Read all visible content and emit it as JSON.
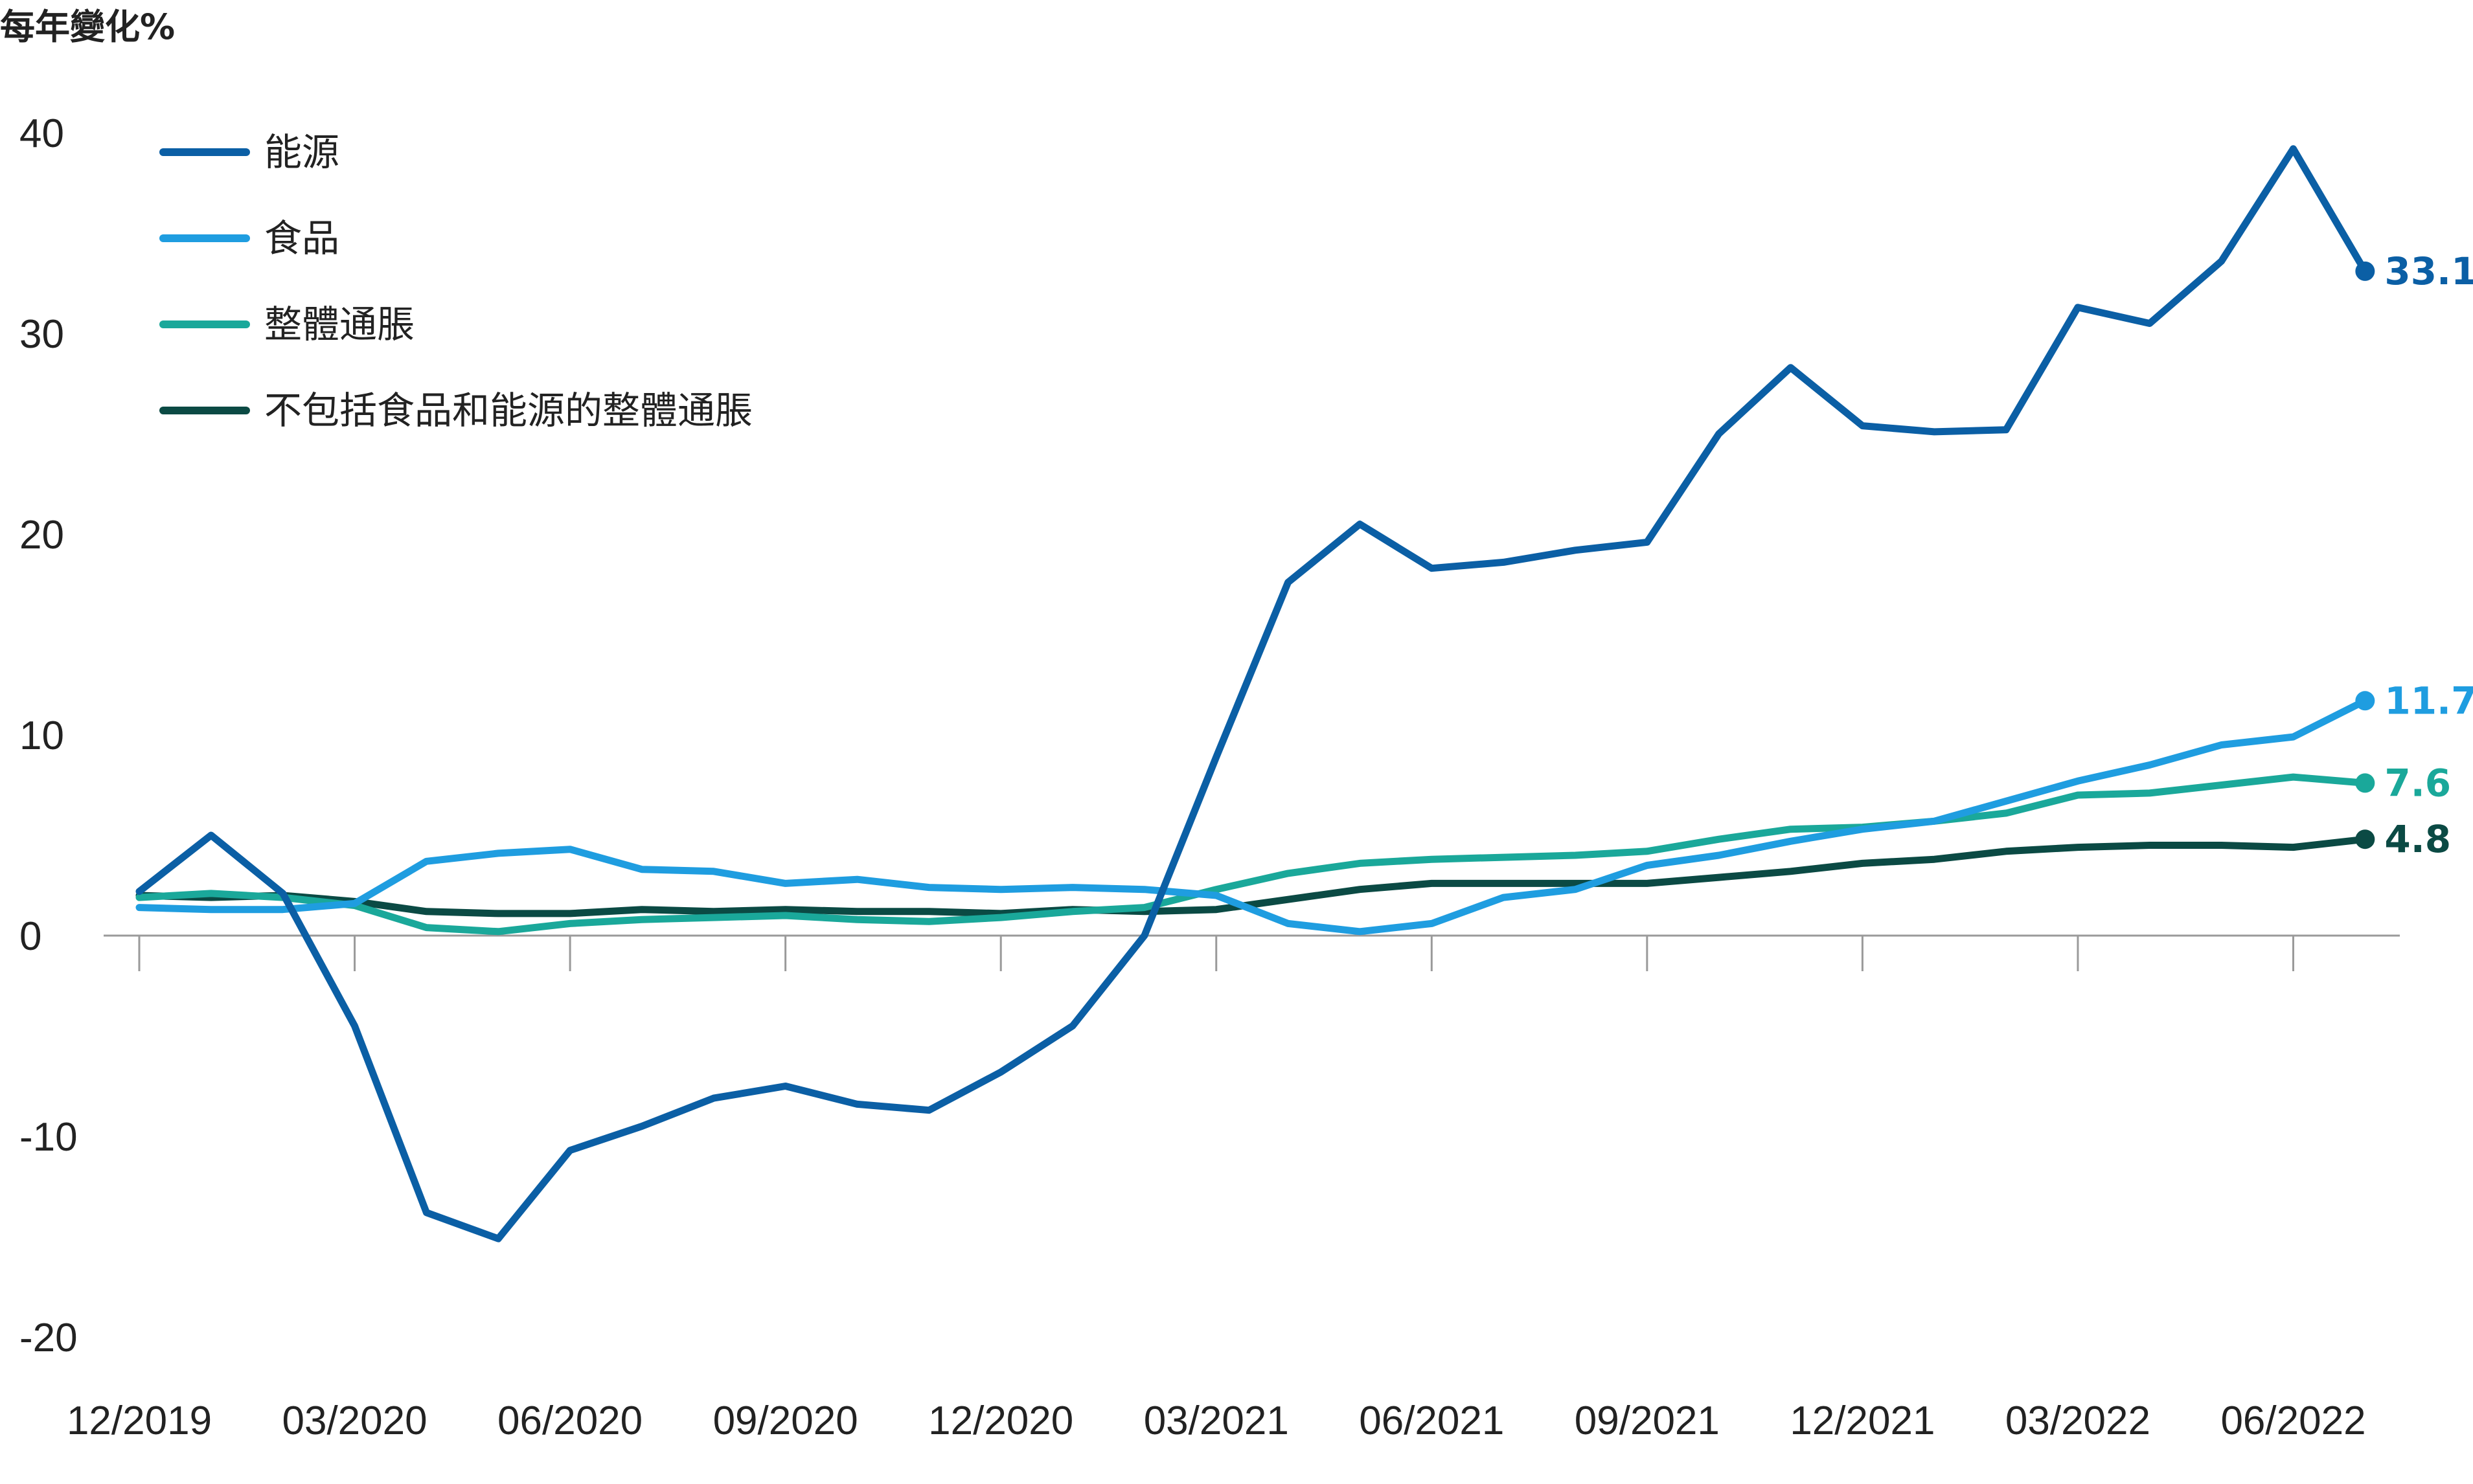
{
  "chart_data": {
    "type": "line",
    "title": "",
    "ylabel": "每年變化%",
    "xlabel": "",
    "ylim": [
      -20,
      40
    ],
    "yticks": [
      "40",
      "30",
      "20",
      "10",
      "0",
      "-10",
      "-20"
    ],
    "ytick_values": [
      40,
      30,
      20,
      10,
      0,
      -10,
      -20
    ],
    "grid": false,
    "legend_position": "top-left",
    "x": [
      "12/2019",
      "01/2020",
      "02/2020",
      "03/2020",
      "04/2020",
      "05/2020",
      "06/2020",
      "07/2020",
      "08/2020",
      "09/2020",
      "10/2020",
      "11/2020",
      "12/2020",
      "01/2021",
      "02/2021",
      "03/2021",
      "04/2021",
      "05/2021",
      "06/2021",
      "07/2021",
      "08/2021",
      "09/2021",
      "10/2021",
      "11/2021",
      "12/2021",
      "01/2022",
      "02/2022",
      "03/2022",
      "04/2022",
      "05/2022",
      "06/2022",
      "07/2022"
    ],
    "xticks": [
      "12/2019",
      "03/2020",
      "06/2020",
      "09/2020",
      "12/2020",
      "03/2021",
      "06/2021",
      "09/2021",
      "12/2021",
      "03/2022",
      "06/2022"
    ],
    "series": [
      {
        "name": "能源",
        "color": "#0b5fa5",
        "end_label": "33.1",
        "values": [
          2.2,
          5.0,
          2.1,
          -4.5,
          -13.8,
          -15.1,
          -10.7,
          -9.5,
          -8.1,
          -7.5,
          -8.4,
          -8.7,
          -6.8,
          -4.5,
          0.0,
          8.9,
          17.6,
          20.5,
          18.3,
          18.6,
          19.2,
          19.6,
          25.0,
          28.3,
          25.4,
          25.1,
          25.2,
          31.3,
          30.5,
          33.6,
          39.2,
          33.1
        ]
      },
      {
        "name": "食品",
        "color": "#1f9de0",
        "end_label": "11.7",
        "values": [
          1.4,
          1.3,
          1.3,
          1.6,
          3.7,
          4.1,
          4.3,
          3.3,
          3.2,
          2.6,
          2.8,
          2.4,
          2.3,
          2.4,
          2.3,
          2.0,
          0.6,
          0.2,
          0.6,
          1.9,
          2.3,
          3.5,
          4.0,
          4.7,
          5.3,
          5.7,
          6.7,
          7.7,
          8.5,
          9.5,
          9.9,
          11.7
        ]
      },
      {
        "name": "整體通脹",
        "color": "#1aa89a",
        "end_label": "7.6",
        "values": [
          1.9,
          2.1,
          1.9,
          1.5,
          0.4,
          0.2,
          0.6,
          0.8,
          0.9,
          1.0,
          0.8,
          0.7,
          0.9,
          1.2,
          1.4,
          2.3,
          3.1,
          3.6,
          3.8,
          3.9,
          4.0,
          4.2,
          4.8,
          5.3,
          5.4,
          5.7,
          6.1,
          7.0,
          7.1,
          7.5,
          7.9,
          7.6
        ]
      },
      {
        "name": "不包括食品和能源的整體通脹",
        "color": "#0b4a44",
        "end_label": "4.8",
        "values": [
          2.0,
          1.9,
          2.0,
          1.7,
          1.2,
          1.1,
          1.1,
          1.3,
          1.2,
          1.3,
          1.2,
          1.2,
          1.1,
          1.3,
          1.2,
          1.3,
          1.8,
          2.3,
          2.6,
          2.6,
          2.6,
          2.6,
          2.9,
          3.2,
          3.6,
          3.8,
          4.2,
          4.4,
          4.5,
          4.5,
          4.4,
          4.8
        ]
      }
    ]
  }
}
